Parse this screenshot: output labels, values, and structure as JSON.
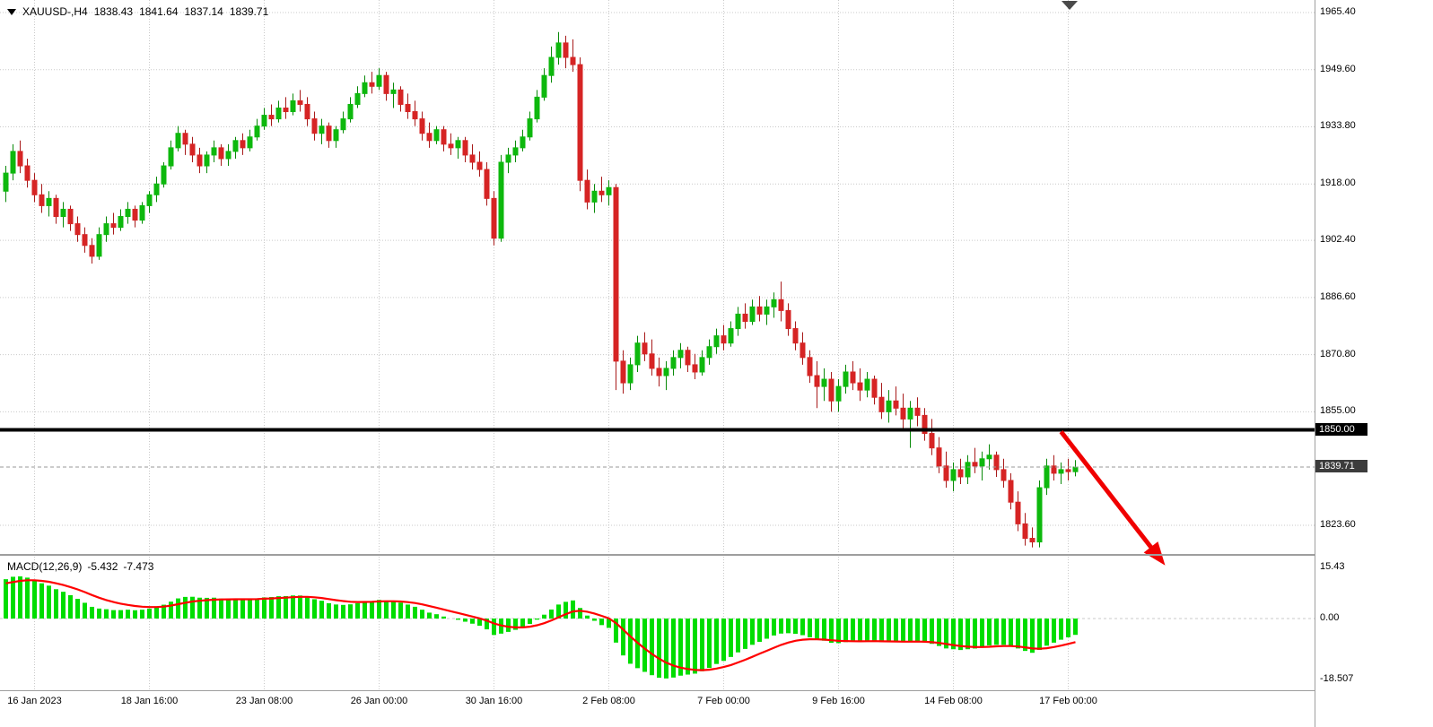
{
  "symbol_bar": {
    "symbol": "XAUUSD-,H4",
    "open": "1838.43",
    "high": "1841.64",
    "low": "1837.14",
    "close": "1839.71"
  },
  "macd_label": {
    "name": "MACD(12,26,9)",
    "macd": "-5.432",
    "signal": "-7.473"
  },
  "price_axis": {
    "labels": [
      "1965.40",
      "1949.60",
      "1933.80",
      "1918.00",
      "1902.40",
      "1886.60",
      "1870.80",
      "1855.00",
      "1823.60"
    ],
    "hline_badge": "1850.00",
    "current_badge": "1839.71"
  },
  "macd_axis": {
    "labels": [
      "15.43",
      "0.00",
      "-18.507"
    ]
  },
  "colors": {
    "bull": "#0db80d",
    "bear": "#d62424",
    "wick_bull": "#0a8a0a",
    "wick_bear": "#a81b1b",
    "macd_hist": "#00dd00",
    "macd_signal": "#ff0000",
    "hline": "#000000",
    "current_line": "#9a9a9a",
    "grid": "#c9c9c9",
    "arrow": "#f00000"
  },
  "chart_data": {
    "type": "candlestick",
    "symbol": "XAUUSD-",
    "timeframe": "H4",
    "title": "XAUUSD-,H4 1838.43 1841.64 1837.14 1839.71",
    "price_range": {
      "top_label": 1965.4,
      "bottom_label": 1823.6,
      "label_step": 15.8
    },
    "hline": 1850.0,
    "current_price": 1839.71,
    "time_ticks": [
      {
        "label": "16 Jan 2023",
        "bar": 4
      },
      {
        "label": "18 Jan 16:00",
        "bar": 20
      },
      {
        "label": "23 Jan 08:00",
        "bar": 36
      },
      {
        "label": "26 Jan 00:00",
        "bar": 52
      },
      {
        "label": "30 Jan 16:00",
        "bar": 68
      },
      {
        "label": "2 Feb 08:00",
        "bar": 84
      },
      {
        "label": "7 Feb 00:00",
        "bar": 100
      },
      {
        "label": "9 Feb 16:00",
        "bar": 116
      },
      {
        "label": "14 Feb 08:00",
        "bar": 132
      },
      {
        "label": "17 Feb 00:00",
        "bar": 148
      }
    ],
    "ohlc": [
      [
        1916,
        1923,
        1913,
        1921
      ],
      [
        1921,
        1929,
        1919,
        1927
      ],
      [
        1927,
        1930,
        1921,
        1923
      ],
      [
        1923,
        1925,
        1917,
        1919
      ],
      [
        1919,
        1921,
        1913,
        1915
      ],
      [
        1915,
        1918,
        1910,
        1912
      ],
      [
        1912,
        1916,
        1909,
        1914
      ],
      [
        1914,
        1915,
        1907,
        1909
      ],
      [
        1909,
        1913,
        1906,
        1911
      ],
      [
        1911,
        1912,
        1905,
        1907
      ],
      [
        1907,
        1909,
        1902,
        1904
      ],
      [
        1904,
        1906,
        1899,
        1901
      ],
      [
        1901,
        1903,
        1896,
        1898
      ],
      [
        1898,
        1906,
        1897,
        1904
      ],
      [
        1904,
        1909,
        1902,
        1907
      ],
      [
        1907,
        1910,
        1904,
        1906
      ],
      [
        1906,
        1911,
        1905,
        1909
      ],
      [
        1909,
        1913,
        1907,
        1911
      ],
      [
        1911,
        1912,
        1906,
        1908
      ],
      [
        1908,
        1913,
        1907,
        1912
      ],
      [
        1912,
        1916,
        1910,
        1915
      ],
      [
        1915,
        1920,
        1913,
        1918
      ],
      [
        1918,
        1924,
        1917,
        1923
      ],
      [
        1923,
        1930,
        1922,
        1928
      ],
      [
        1928,
        1934,
        1927,
        1932
      ],
      [
        1932,
        1933,
        1926,
        1929
      ],
      [
        1929,
        1931,
        1924,
        1926
      ],
      [
        1926,
        1928,
        1921,
        1923
      ],
      [
        1923,
        1927,
        1921,
        1926
      ],
      [
        1926,
        1930,
        1924,
        1928
      ],
      [
        1928,
        1929,
        1923,
        1925
      ],
      [
        1925,
        1929,
        1923,
        1927
      ],
      [
        1927,
        1931,
        1925,
        1930
      ],
      [
        1930,
        1932,
        1926,
        1928
      ],
      [
        1928,
        1933,
        1927,
        1931
      ],
      [
        1931,
        1936,
        1930,
        1934
      ],
      [
        1934,
        1939,
        1933,
        1937
      ],
      [
        1937,
        1940,
        1934,
        1936
      ],
      [
        1936,
        1941,
        1935,
        1939
      ],
      [
        1939,
        1942,
        1936,
        1938
      ],
      [
        1938,
        1943,
        1937,
        1941
      ],
      [
        1941,
        1944,
        1938,
        1940
      ],
      [
        1940,
        1942,
        1934,
        1936
      ],
      [
        1936,
        1938,
        1930,
        1932
      ],
      [
        1932,
        1936,
        1929,
        1934
      ],
      [
        1934,
        1935,
        1928,
        1930
      ],
      [
        1930,
        1934,
        1928,
        1933
      ],
      [
        1933,
        1938,
        1932,
        1936
      ],
      [
        1936,
        1942,
        1935,
        1940
      ],
      [
        1940,
        1945,
        1939,
        1943
      ],
      [
        1943,
        1948,
        1942,
        1946
      ],
      [
        1946,
        1949,
        1943,
        1945
      ],
      [
        1945,
        1950,
        1944,
        1948
      ],
      [
        1948,
        1949,
        1941,
        1943
      ],
      [
        1943,
        1946,
        1939,
        1944
      ],
      [
        1944,
        1945,
        1938,
        1940
      ],
      [
        1940,
        1943,
        1936,
        1938
      ],
      [
        1938,
        1941,
        1934,
        1936
      ],
      [
        1936,
        1938,
        1930,
        1932
      ],
      [
        1932,
        1935,
        1928,
        1930
      ],
      [
        1930,
        1934,
        1929,
        1933
      ],
      [
        1933,
        1934,
        1927,
        1929
      ],
      [
        1929,
        1932,
        1926,
        1928
      ],
      [
        1928,
        1931,
        1925,
        1930
      ],
      [
        1930,
        1931,
        1924,
        1926
      ],
      [
        1926,
        1929,
        1922,
        1924
      ],
      [
        1924,
        1927,
        1920,
        1922
      ],
      [
        1922,
        1924,
        1912,
        1914
      ],
      [
        1914,
        1916,
        1901,
        1903
      ],
      [
        1903,
        1926,
        1902,
        1924
      ],
      [
        1924,
        1928,
        1921,
        1926
      ],
      [
        1926,
        1930,
        1924,
        1928
      ],
      [
        1928,
        1933,
        1927,
        1931
      ],
      [
        1931,
        1938,
        1930,
        1936
      ],
      [
        1936,
        1944,
        1935,
        1942
      ],
      [
        1942,
        1950,
        1941,
        1948
      ],
      [
        1948,
        1956,
        1946,
        1953
      ],
      [
        1953,
        1960,
        1951,
        1957
      ],
      [
        1957,
        1959,
        1950,
        1953
      ],
      [
        1953,
        1958,
        1949,
        1951
      ],
      [
        1951,
        1953,
        1916,
        1919
      ],
      [
        1919,
        1922,
        1911,
        1913
      ],
      [
        1913,
        1918,
        1910,
        1916
      ],
      [
        1916,
        1920,
        1913,
        1915
      ],
      [
        1915,
        1919,
        1912,
        1917
      ],
      [
        1917,
        1918,
        1861,
        1869
      ],
      [
        1869,
        1872,
        1860,
        1863
      ],
      [
        1863,
        1870,
        1861,
        1868
      ],
      [
        1868,
        1876,
        1866,
        1874
      ],
      [
        1874,
        1877,
        1869,
        1871
      ],
      [
        1871,
        1875,
        1865,
        1867
      ],
      [
        1867,
        1870,
        1862,
        1865
      ],
      [
        1865,
        1869,
        1861,
        1867
      ],
      [
        1867,
        1872,
        1865,
        1870
      ],
      [
        1870,
        1874,
        1867,
        1872
      ],
      [
        1872,
        1873,
        1866,
        1868
      ],
      [
        1868,
        1871,
        1864,
        1866
      ],
      [
        1866,
        1872,
        1865,
        1870
      ],
      [
        1870,
        1875,
        1868,
        1873
      ],
      [
        1873,
        1878,
        1871,
        1876
      ],
      [
        1876,
        1879,
        1872,
        1874
      ],
      [
        1874,
        1880,
        1873,
        1878
      ],
      [
        1878,
        1884,
        1876,
        1882
      ],
      [
        1882,
        1885,
        1878,
        1880
      ],
      [
        1880,
        1886,
        1879,
        1884
      ],
      [
        1884,
        1887,
        1880,
        1882
      ],
      [
        1882,
        1886,
        1879,
        1884
      ],
      [
        1884,
        1888,
        1881,
        1886
      ],
      [
        1886,
        1891,
        1880,
        1883
      ],
      [
        1883,
        1885,
        1876,
        1878
      ],
      [
        1878,
        1880,
        1872,
        1874
      ],
      [
        1874,
        1877,
        1868,
        1870
      ],
      [
        1870,
        1872,
        1863,
        1865
      ],
      [
        1865,
        1869,
        1856,
        1862
      ],
      [
        1862,
        1867,
        1858,
        1864
      ],
      [
        1864,
        1866,
        1855,
        1858
      ],
      [
        1858,
        1864,
        1855,
        1862
      ],
      [
        1862,
        1868,
        1860,
        1866
      ],
      [
        1866,
        1869,
        1861,
        1863
      ],
      [
        1863,
        1867,
        1858,
        1861
      ],
      [
        1861,
        1866,
        1859,
        1864
      ],
      [
        1864,
        1865,
        1857,
        1859
      ],
      [
        1859,
        1863,
        1853,
        1855
      ],
      [
        1855,
        1861,
        1852,
        1858
      ],
      [
        1858,
        1862,
        1854,
        1856
      ],
      [
        1856,
        1860,
        1850,
        1853
      ],
      [
        1853,
        1858,
        1845,
        1856
      ],
      [
        1856,
        1859,
        1851,
        1854
      ],
      [
        1854,
        1856,
        1847,
        1849
      ],
      [
        1849,
        1853,
        1843,
        1845
      ],
      [
        1845,
        1848,
        1838,
        1840
      ],
      [
        1840,
        1844,
        1834,
        1836
      ],
      [
        1836,
        1841,
        1833,
        1839
      ],
      [
        1839,
        1842,
        1835,
        1837
      ],
      [
        1837,
        1843,
        1835,
        1841
      ],
      [
        1841,
        1845,
        1838,
        1840
      ],
      [
        1840,
        1844,
        1836,
        1842
      ],
      [
        1842,
        1846,
        1839,
        1843
      ],
      [
        1843,
        1844,
        1837,
        1839
      ],
      [
        1839,
        1842,
        1834,
        1836
      ],
      [
        1836,
        1838,
        1828,
        1830
      ],
      [
        1830,
        1833,
        1822,
        1824
      ],
      [
        1824,
        1827,
        1818,
        1820
      ],
      [
        1820,
        1823,
        1817.5,
        1819
      ],
      [
        1819,
        1836,
        1817.5,
        1834
      ],
      [
        1834,
        1842,
        1832,
        1840
      ],
      [
        1840,
        1843,
        1836,
        1838
      ],
      [
        1838,
        1841,
        1835,
        1839
      ],
      [
        1839,
        1842,
        1836,
        1838.43
      ],
      [
        1838.43,
        1841.64,
        1837.14,
        1839.71
      ]
    ],
    "indicator": {
      "type": "macd",
      "params": [
        12,
        26,
        9
      ],
      "macd_value": -5.432,
      "signal_value": -7.473,
      "axis_labels": [
        15.43,
        0.0,
        -18.507
      ]
    },
    "annotations": [
      {
        "type": "arrow",
        "from": {
          "bar": 147,
          "price": 1849.5
        },
        "to": {
          "bar": 161.5,
          "price": 1812.5
        }
      }
    ]
  }
}
